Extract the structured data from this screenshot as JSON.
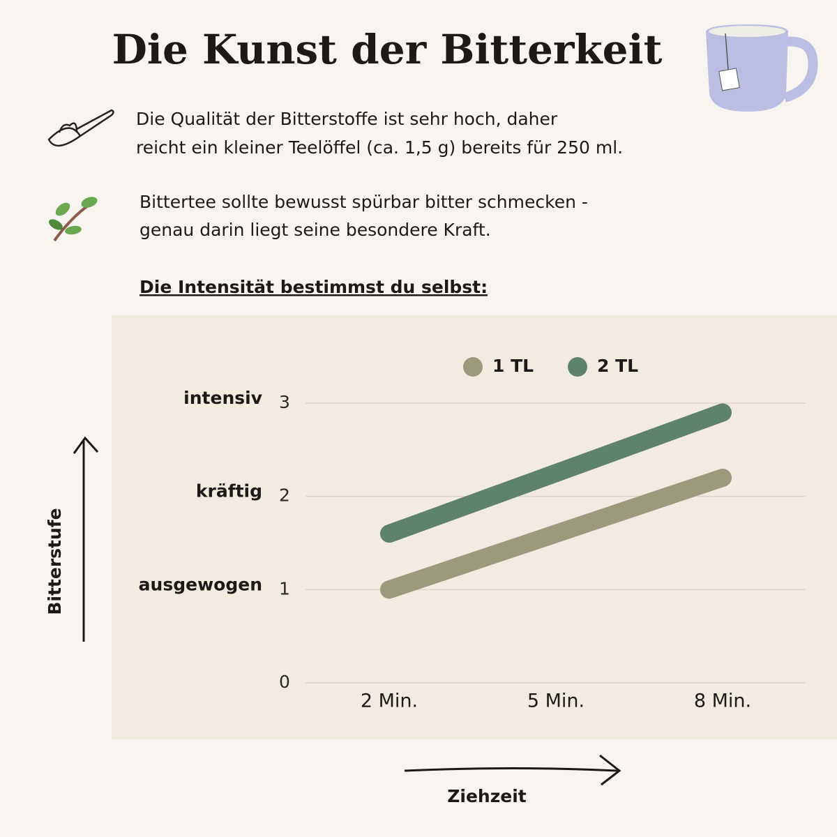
{
  "header": {
    "title": "Die Kunst der Bitterkeit"
  },
  "notes": [
    [
      "Die Qualität der Bitterstoffe ist sehr hoch, daher",
      "reicht ein kleiner Teelöffel (ca. 1,5 g) bereits für 250 ml."
    ],
    [
      "Bittertee sollte bewusst spürbar bitter schmecken -",
      "genau darin liegt seine besondere Kraft."
    ]
  ],
  "subheading": "Die Intensität bestimmst du selbst:",
  "chart_data": {
    "type": "line",
    "categories": [
      "2 Min.",
      "5 Min.",
      "8 Min."
    ],
    "series": [
      {
        "name": "1 TL",
        "color": "#9c9a7c",
        "values": [
          1,
          1.6,
          2.2
        ]
      },
      {
        "name": "2 TL",
        "color": "#5f8369",
        "values": [
          1.6,
          2.25,
          2.9
        ]
      }
    ],
    "ylim": [
      0,
      3
    ],
    "yticks": [
      0,
      1,
      2,
      3
    ],
    "ylevels": [
      {
        "value": 1,
        "label": "ausgewogen"
      },
      {
        "value": 2,
        "label": "kräftig"
      },
      {
        "value": 3,
        "label": "intensiv"
      }
    ],
    "y_label": "Bitterstufe",
    "x_label": "Ziehzeit",
    "grid": true
  }
}
